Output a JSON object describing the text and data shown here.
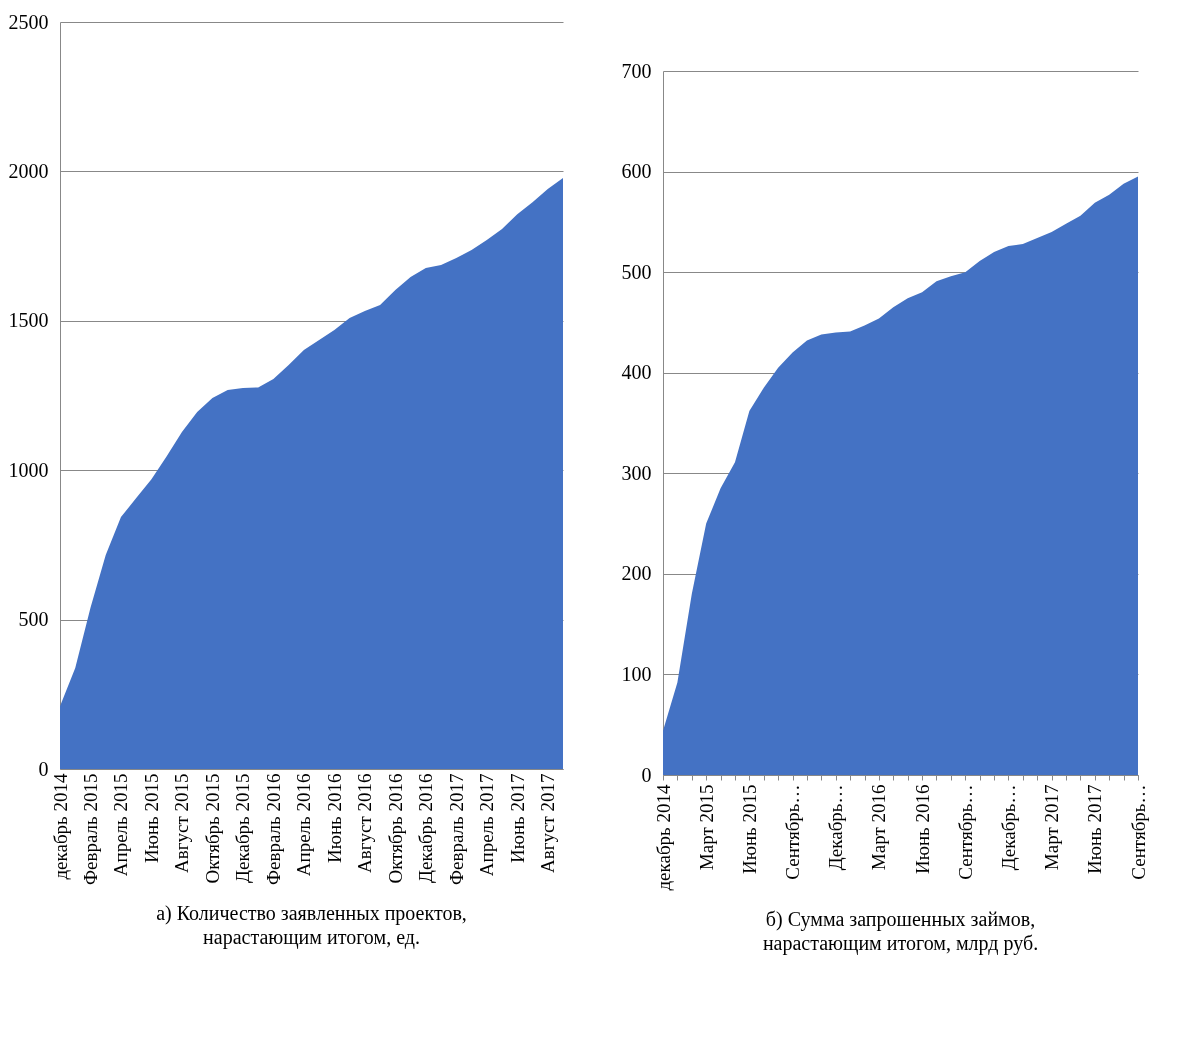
{
  "chart_data": [
    {
      "type": "area",
      "title": "а) Количество заявленных проектов,\nнарастающим итогом, ед.",
      "categories": [
        "декабрь 2014",
        null,
        "Февраль 2015",
        null,
        "Апрель 2015",
        null,
        "Июнь 2015",
        null,
        "Август 2015",
        null,
        "Октябрь 2015",
        null,
        "Декабрь 2015",
        null,
        "Февраль 2016",
        null,
        "Апрель 2016",
        null,
        "Июнь 2016",
        null,
        "Август 2016",
        null,
        "Октябрь 2016",
        null,
        "Декабрь 2016",
        null,
        "Февраль 2017",
        null,
        "Апрель 2017",
        null,
        "Июнь 2017",
        null,
        "Август 2017",
        null
      ],
      "series": [
        {
          "color": "#4472c4",
          "values": [
            210,
            338,
            540,
            716,
            843,
            907,
            970,
            1047,
            1128,
            1195,
            1242,
            1268,
            1275,
            1277,
            1305,
            1352,
            1402,
            1436,
            1469,
            1509,
            1533,
            1553,
            1603,
            1647,
            1677,
            1687,
            1710,
            1737,
            1770,
            1807,
            1857,
            1897,
            1941,
            1978
          ]
        }
      ],
      "ylim": [
        0,
        2500
      ],
      "yticks": [
        0,
        500,
        1000,
        1500,
        2000,
        2500
      ],
      "grid": "y"
    },
    {
      "type": "area",
      "title": "б) Сумма запрошенных займов,\nнарастающим итогом, млрд руб.",
      "categories": [
        "декабрь 2014",
        null,
        null,
        "Март 2015",
        null,
        null,
        "Июнь 2015",
        null,
        null,
        "Сентябрь…",
        null,
        null,
        "Декабрь…",
        null,
        null,
        "Март 2016",
        null,
        null,
        "Июнь 2016",
        null,
        null,
        "Сентябрь…",
        null,
        null,
        "Декабрь…",
        null,
        null,
        "Март 2017",
        null,
        null,
        "Июнь 2017",
        null,
        null,
        "Сентябрь…"
      ],
      "series": [
        {
          "color": "#4472c4",
          "values": [
            44,
            92,
            180,
            250,
            285,
            311,
            362,
            385,
            405,
            420,
            432,
            438,
            440,
            441,
            447,
            454,
            465,
            474,
            480,
            491,
            496,
            500,
            511,
            520,
            526,
            528,
            534,
            540,
            548,
            556,
            569,
            577,
            588,
            595
          ]
        }
      ],
      "ylim": [
        0,
        700
      ],
      "yticks": [
        0,
        100,
        200,
        300,
        400,
        500,
        600,
        700
      ],
      "grid": "y"
    }
  ]
}
